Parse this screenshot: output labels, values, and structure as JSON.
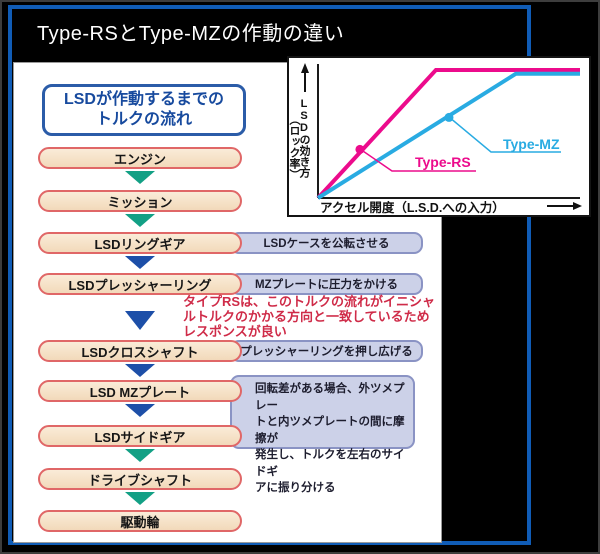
{
  "header": {
    "title": "Type-RSとType-MZの作動の違い"
  },
  "flow": {
    "heading": {
      "line1": "LSDが作動するまでの",
      "line2": "トルクの流れ"
    },
    "steps": [
      {
        "label": "エンジン"
      },
      {
        "label": "ミッション"
      },
      {
        "label": "LSDリングギア"
      },
      {
        "label": "LSDプレッシャーリング"
      },
      {
        "label": "LSDクロスシャフト"
      },
      {
        "label": "LSD MZプレート"
      },
      {
        "label": "LSDサイドギア"
      },
      {
        "label": "ドライブシャフト"
      },
      {
        "label": "駆動輪"
      }
    ],
    "side_notes": [
      {
        "text": "LSDケースを公転させる"
      },
      {
        "text": "MZプレートに圧力をかける"
      },
      {
        "text": "プレッシャーリングを押し広げる"
      },
      {
        "text": "回転差がある場合、外ツメプレー\nトと内ツメプレートの間に摩擦が\n発生し、トルクを左右のサイドギ\nアに振り分ける"
      }
    ],
    "rs_annotation": "タイプRSは、このトルクの流れがイニシャ\nルトルクのかかる方向と一致しているため\nレスポンスが良い"
  },
  "chart_data": {
    "type": "line",
    "title": "",
    "xlabel": "アクセル開度（L.S.D.への入力）",
    "ylabel": "LSDの効き方（ロック率）",
    "ylabel_lines": [
      "LSDの効き方",
      "（ロック率）"
    ],
    "grid": false,
    "legend_position": "inline-labels",
    "axis_range_note": "qualitative axes, no tick values shown",
    "series": [
      {
        "name": "Type-RS",
        "color": "#ec0b8c",
        "points": [
          [
            0,
            0
          ],
          [
            0.45,
            1.0
          ],
          [
            1.0,
            1.0
          ]
        ],
        "marker": [
          0.16,
          0.38
        ]
      },
      {
        "name": "Type-MZ",
        "color": "#29abe2",
        "points": [
          [
            0,
            0
          ],
          [
            0.755,
            0.97
          ],
          [
            1.0,
            0.97
          ]
        ],
        "marker": [
          0.5,
          0.63
        ]
      }
    ]
  },
  "colors": {
    "frame_blue": "#105cb6",
    "arrow_green": "#13a085",
    "arrow_blue": "#1d4fa8",
    "flow_box_fill": "#f2d9ba",
    "flow_box_border": "#e06767",
    "note_fill": "#ccd1e8",
    "note_border": "#8a93c4",
    "annotation_red": "#cf2b48",
    "heading_blue": "#174a9e",
    "type_rs_pink": "#ec0b8c",
    "type_mz_cyan": "#29abe2"
  }
}
